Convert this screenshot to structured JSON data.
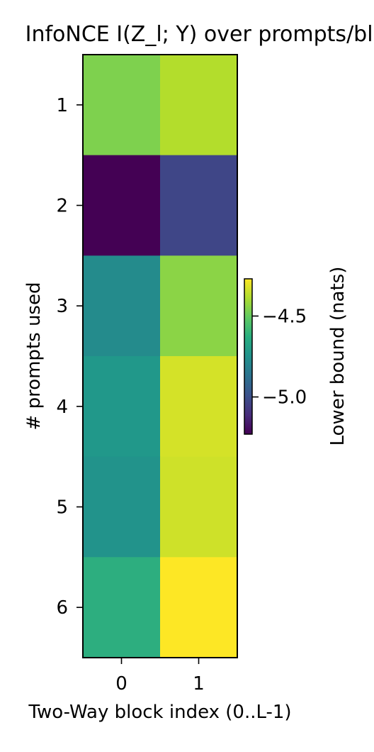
{
  "chart_data": {
    "type": "heatmap",
    "title": "InfoNCE  I(Z_l; Y) over prompts/blocks",
    "xlabel": "Two-Way block index (0..L-1)",
    "ylabel": "# prompts used",
    "x_categories": [
      "0",
      "1"
    ],
    "y_categories": [
      "1",
      "2",
      "3",
      "4",
      "5",
      "6"
    ],
    "values": [
      [
        -4.46,
        -4.38
      ],
      [
        -5.23,
        -5.03
      ],
      [
        -4.77,
        -4.44
      ],
      [
        -4.72,
        -4.33
      ],
      [
        -4.74,
        -4.34
      ],
      [
        -4.63,
        -4.27
      ]
    ],
    "colorbar": {
      "label": "Lower bound (nats)",
      "vmin": -5.23,
      "vmax": -4.27,
      "ticks": [
        -5.0,
        -4.5
      ],
      "tick_labels": [
        "−5.0",
        "−4.5"
      ]
    },
    "colormap": "viridis"
  }
}
